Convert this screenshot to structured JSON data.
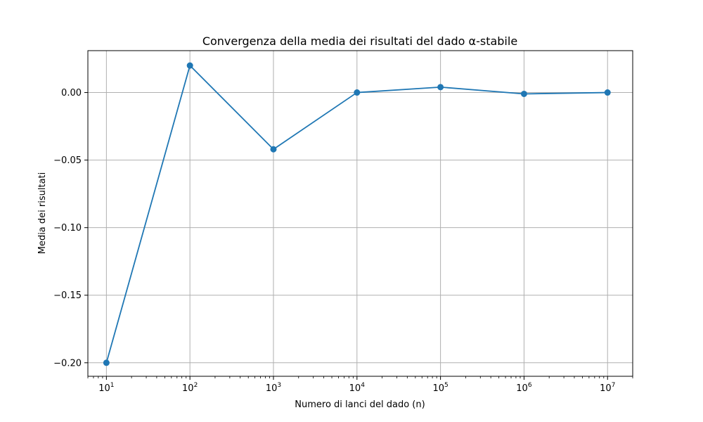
{
  "chart_data": {
    "type": "line",
    "title": "Convergenza della media dei risultati del dado α-stabile",
    "xlabel": "Numero di lanci del dado (n)",
    "ylabel": "Media dei risultati",
    "x_scale": "log",
    "xlim": [
      6,
      20000000
    ],
    "ylim": [
      -0.21,
      0.031
    ],
    "x": [
      10,
      100,
      1000,
      10000,
      100000,
      1000000,
      10000000
    ],
    "x_tick_labels": [
      {
        "base": "10",
        "exp": "1"
      },
      {
        "base": "10",
        "exp": "2"
      },
      {
        "base": "10",
        "exp": "3"
      },
      {
        "base": "10",
        "exp": "4"
      },
      {
        "base": "10",
        "exp": "5"
      },
      {
        "base": "10",
        "exp": "6"
      },
      {
        "base": "10",
        "exp": "7"
      }
    ],
    "y_ticks": [
      0.0,
      -0.05,
      -0.1,
      -0.15,
      -0.2
    ],
    "y_tick_labels": [
      "0.00",
      "−0.05",
      "−0.10",
      "−0.15",
      "−0.20"
    ],
    "series": [
      {
        "values": [
          -0.2,
          0.02,
          -0.042,
          0.0,
          0.004,
          -0.001,
          0.0
        ],
        "color": "#1f77b4",
        "marker": "circle"
      }
    ],
    "grid": true,
    "legend": "none"
  }
}
